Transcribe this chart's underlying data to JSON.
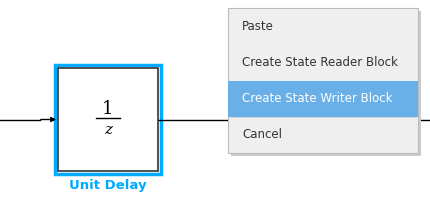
{
  "canvas_color": "#ffffff",
  "block_border_color": "#00aaff",
  "block_inner_border_color": "#333333",
  "block_label": "Unit Delay",
  "block_label_color": "#00aaff",
  "fraction_num": "1",
  "fraction_den": "z",
  "menu_bg": "#efefef",
  "menu_border_color": "#bbbbbb",
  "menu_shadow_color": "#cccccc",
  "menu_items": [
    "Paste",
    "Create State Reader Block",
    "Create State Writer Block",
    "Cancel"
  ],
  "highlight_item": 2,
  "highlight_color": "#6ab0e8",
  "highlight_text_color": "#ffffff",
  "menu_text_color": "#333333",
  "menu_fontsize": 8.5,
  "block_fontsize_num": 13,
  "block_fontsize_den": 11,
  "unit_delay_fontsize": 9.5
}
